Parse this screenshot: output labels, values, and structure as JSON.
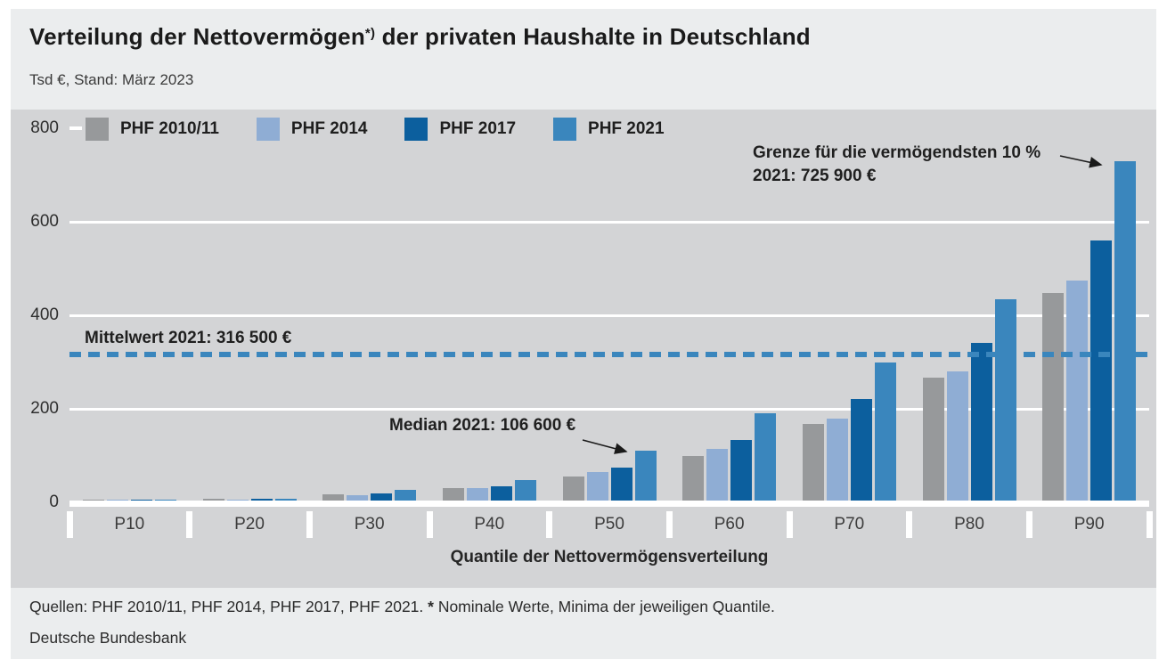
{
  "header": {
    "title_part1": "Verteilung der Nettovermögen",
    "title_sup": "*)",
    "title_part2": " der privaten Haushalte in Deutschland",
    "subtitle": "Tsd €, Stand: März 2023"
  },
  "chart_data": {
    "type": "bar",
    "unit": "Tsd €",
    "categories": [
      "P10",
      "P20",
      "P30",
      "P40",
      "P50",
      "P60",
      "P70",
      "P80",
      "P90"
    ],
    "series": [
      {
        "name": "PHF 2010/11",
        "color": "#97999b",
        "values": [
          0.5,
          3,
          13,
          26,
          51,
          95,
          164,
          262,
          444
        ]
      },
      {
        "name": "PHF 2014",
        "color": "#8fadd4",
        "values": [
          0.7,
          2.5,
          12,
          26,
          61,
          110,
          175,
          276,
          470
        ]
      },
      {
        "name": "PHF 2017",
        "color": "#0c5f9e",
        "values": [
          1.2,
          4,
          16,
          30,
          71,
          130,
          218,
          338,
          556
        ]
      },
      {
        "name": "PHF 2021",
        "color": "#3a86bd",
        "values": [
          2,
          4,
          22,
          44,
          106.6,
          186,
          296,
          430,
          725.9
        ]
      }
    ],
    "ylim": [
      0,
      800
    ],
    "yticks": [
      0,
      200,
      400,
      600,
      800
    ],
    "xlabel": "Quantile der Nettovermögensverteilung",
    "grid": "horizontal-white",
    "legend_position": "top-left",
    "plot_background": "#d3d4d6",
    "reference_line": {
      "value": 316.5,
      "style": "dashed",
      "color": "#3a86bd",
      "label": "Mittelwert 2021: 316 500 €"
    },
    "annotations": [
      {
        "id": "top10",
        "line1": "Grenze für die vermögendsten 10 %",
        "line2": "2021: 725 900 €",
        "points_to": "P90 bar PHF 2021"
      },
      {
        "id": "median",
        "text": "Median 2021: 106 600 €",
        "points_to": "P50 bar PHF 2021"
      }
    ]
  },
  "footer": {
    "sources_prefix": "Quellen: PHF 2010/11, PHF 2014, PHF 2017, PHF 2021. ",
    "star": "*",
    "note": " Nominale Werte, Minima der jeweiligen Quantile.",
    "institution": "Deutsche Bundesbank"
  }
}
